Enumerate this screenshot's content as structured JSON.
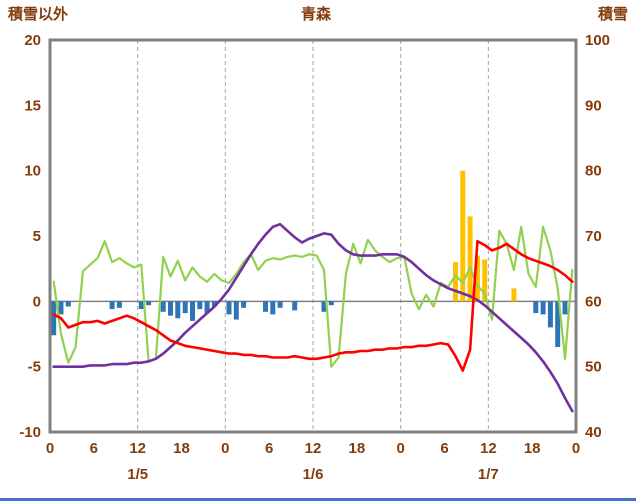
{
  "title": "青森",
  "left_axis": {
    "label": "積雪以外",
    "min": -10,
    "max": 20,
    "ticks": [
      20,
      15,
      10,
      5,
      0,
      -5,
      -10
    ]
  },
  "right_axis": {
    "label": "積雪",
    "min": 40,
    "max": 100,
    "ticks": [
      100,
      90,
      80,
      70,
      60,
      50,
      40
    ]
  },
  "x_axis": {
    "tick_hours": [
      0,
      6,
      12,
      18,
      24,
      30,
      36,
      42,
      48,
      54,
      60,
      66,
      72
    ],
    "tick_labels": [
      "0",
      "6",
      "12",
      "18",
      "0",
      "6",
      "12",
      "18",
      "0",
      "6",
      "12",
      "18",
      "0"
    ],
    "day_labels": [
      {
        "hour": 12,
        "label": "1/5"
      },
      {
        "hour": 36,
        "label": "1/6"
      },
      {
        "hour": 60,
        "label": "1/7"
      }
    ],
    "grid_hours": [
      12,
      24,
      36,
      48,
      60
    ]
  },
  "colors": {
    "axis_text": "#843C0C",
    "grid": "#A6A6A6",
    "zero_line": "#808080",
    "border": "#808080",
    "bottom_strip": "#4472C4"
  },
  "chart_data": {
    "type": "line",
    "hours_span": 72,
    "x_unit": "hour",
    "left_range": [
      -10,
      20
    ],
    "right_range": [
      40,
      100
    ],
    "grid": "vertical-dashed-every-12h",
    "legend": "none",
    "series": [
      {
        "name": "green-line",
        "type": "line",
        "color": "#92D050",
        "width": 2.2,
        "values": [
          1.5,
          -2.5,
          -4.7,
          -3.5,
          2.3,
          2.8,
          3.3,
          4.6,
          3.0,
          3.3,
          2.9,
          2.6,
          2.8,
          -4.6,
          -4.4,
          3.4,
          1.9,
          3.1,
          1.6,
          2.6,
          1.9,
          1.5,
          2.1,
          1.6,
          1.4,
          2.1,
          3.0,
          3.6,
          2.4,
          3.1,
          3.3,
          3.2,
          3.4,
          3.5,
          3.4,
          3.6,
          3.5,
          2.4,
          -5.0,
          -4.3,
          2.1,
          4.4,
          2.9,
          4.7,
          3.9,
          3.4,
          3.0,
          3.3,
          3.4,
          0.6,
          -0.6,
          0.5,
          -0.4,
          1.4,
          1.1,
          2.0,
          1.4,
          2.6,
          1.2,
          0.6,
          -1.4,
          5.4,
          4.4,
          2.4,
          5.7,
          2.1,
          1.1,
          5.7,
          3.9,
          1.0,
          -4.4,
          2.4
        ]
      },
      {
        "name": "purple-line",
        "type": "line",
        "color": "#7030A0",
        "width": 2.6,
        "values": [
          -5.0,
          -5.0,
          -5.0,
          -5.0,
          -5.0,
          -4.9,
          -4.9,
          -4.9,
          -4.8,
          -4.8,
          -4.8,
          -4.7,
          -4.7,
          -4.6,
          -4.4,
          -4.0,
          -3.5,
          -3.0,
          -2.4,
          -1.9,
          -1.4,
          -0.9,
          -0.4,
          0.2,
          0.9,
          1.8,
          2.7,
          3.6,
          4.4,
          5.1,
          5.7,
          5.9,
          5.4,
          4.9,
          4.5,
          4.8,
          5.0,
          5.2,
          5.1,
          4.4,
          3.9,
          3.6,
          3.5,
          3.5,
          3.5,
          3.6,
          3.6,
          3.6,
          3.4,
          3.0,
          2.5,
          2.0,
          1.6,
          1.3,
          1.0,
          0.8,
          0.6,
          0.4,
          0.1,
          -0.3,
          -0.8,
          -1.3,
          -1.8,
          -2.3,
          -2.8,
          -3.3,
          -3.9,
          -4.6,
          -5.4,
          -6.3,
          -7.4,
          -8.4
        ]
      },
      {
        "name": "red-line",
        "type": "line",
        "color": "#FF0000",
        "width": 2.6,
        "values": [
          -1.0,
          -1.3,
          -2.0,
          -1.8,
          -1.6,
          -1.6,
          -1.5,
          -1.7,
          -1.5,
          -1.3,
          -1.1,
          -1.3,
          -1.6,
          -1.9,
          -2.2,
          -2.6,
          -3.0,
          -3.2,
          -3.4,
          -3.5,
          -3.6,
          -3.7,
          -3.8,
          -3.9,
          -4.0,
          -4.0,
          -4.1,
          -4.1,
          -4.2,
          -4.2,
          -4.3,
          -4.3,
          -4.3,
          -4.2,
          -4.3,
          -4.4,
          -4.4,
          -4.3,
          -4.2,
          -4.0,
          -3.9,
          -3.9,
          -3.8,
          -3.8,
          -3.7,
          -3.7,
          -3.6,
          -3.6,
          -3.5,
          -3.5,
          -3.4,
          -3.4,
          -3.3,
          -3.2,
          -3.3,
          -4.2,
          -5.3,
          -3.7,
          4.6,
          4.3,
          3.9,
          4.1,
          4.4,
          4.0,
          3.6,
          3.3,
          3.1,
          2.9,
          2.7,
          2.4,
          2.0,
          1.5
        ]
      },
      {
        "name": "blue-bars",
        "type": "bar",
        "color": "#2E75B6",
        "values": [
          -2.6,
          -1.0,
          -0.4,
          null,
          null,
          null,
          null,
          null,
          -0.6,
          -0.5,
          null,
          null,
          -0.6,
          -0.3,
          null,
          -0.8,
          -1.1,
          -1.3,
          -0.9,
          -1.5,
          -0.6,
          -0.9,
          -0.4,
          null,
          -1.0,
          -1.4,
          -0.5,
          null,
          null,
          -0.8,
          -1.0,
          -0.5,
          null,
          -0.7,
          null,
          null,
          null,
          -0.8,
          -0.3,
          null,
          null,
          null,
          null,
          null,
          null,
          null,
          null,
          null,
          null,
          null,
          null,
          null,
          null,
          null,
          null,
          null,
          null,
          null,
          null,
          null,
          null,
          null,
          null,
          null,
          null,
          null,
          -0.9,
          -1.0,
          -2.0,
          -3.5,
          -1.0,
          null
        ]
      },
      {
        "name": "orange-bars",
        "type": "bar",
        "color": "#FFC000",
        "values": [
          null,
          null,
          null,
          null,
          null,
          null,
          null,
          null,
          null,
          null,
          null,
          null,
          null,
          null,
          null,
          null,
          null,
          null,
          null,
          null,
          null,
          null,
          null,
          null,
          null,
          null,
          null,
          null,
          null,
          null,
          null,
          null,
          null,
          null,
          null,
          null,
          null,
          null,
          null,
          null,
          null,
          null,
          null,
          null,
          null,
          null,
          null,
          null,
          null,
          null,
          null,
          null,
          null,
          null,
          null,
          3.0,
          10.0,
          6.5,
          3.5,
          3.2,
          null,
          null,
          null,
          1.0,
          null,
          null,
          null,
          null,
          null,
          null,
          null,
          null
        ]
      }
    ]
  }
}
